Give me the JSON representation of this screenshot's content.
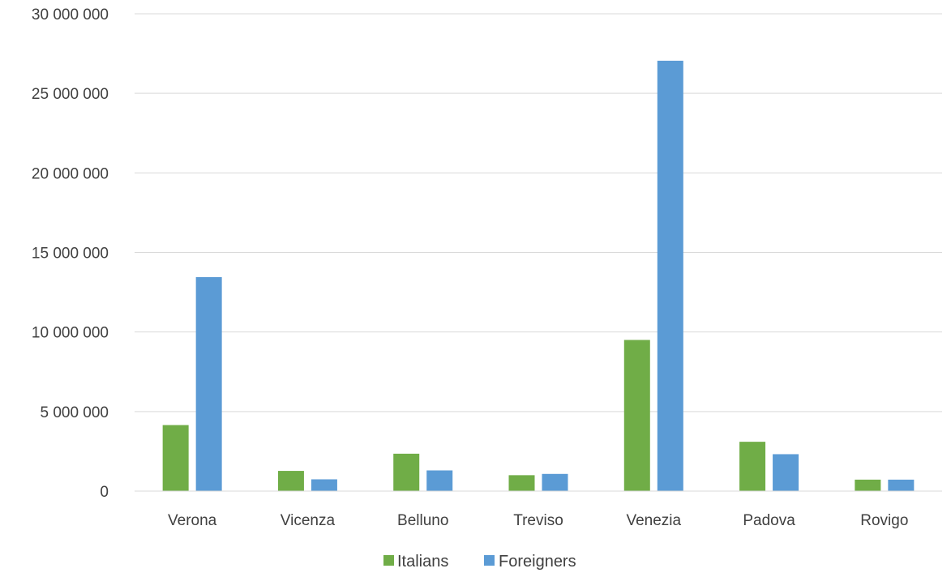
{
  "chart_data": {
    "type": "bar",
    "categories": [
      "Verona",
      "Vicenza",
      "Belluno",
      "Treviso",
      "Venezia",
      "Padova",
      "Rovigo"
    ],
    "series": [
      {
        "name": "Italians",
        "color": "#70ad47",
        "values": [
          4150000,
          1270000,
          2350000,
          1000000,
          9500000,
          3100000,
          720000
        ]
      },
      {
        "name": "Foreigners",
        "color": "#5b9bd5",
        "values": [
          13450000,
          740000,
          1300000,
          1080000,
          27050000,
          2320000,
          720000
        ]
      }
    ],
    "ylim": [
      0,
      30000000
    ],
    "yticks": [
      0,
      5000000,
      10000000,
      15000000,
      20000000,
      25000000,
      30000000
    ],
    "ytick_labels": [
      "0",
      "5 000 000",
      "10 000 000",
      "15 000 000",
      "20 000 000",
      "25 000 000",
      "30 000 000"
    ],
    "grid": true,
    "gridline_color": "#d9d9d9",
    "legend_position": "bottom"
  }
}
